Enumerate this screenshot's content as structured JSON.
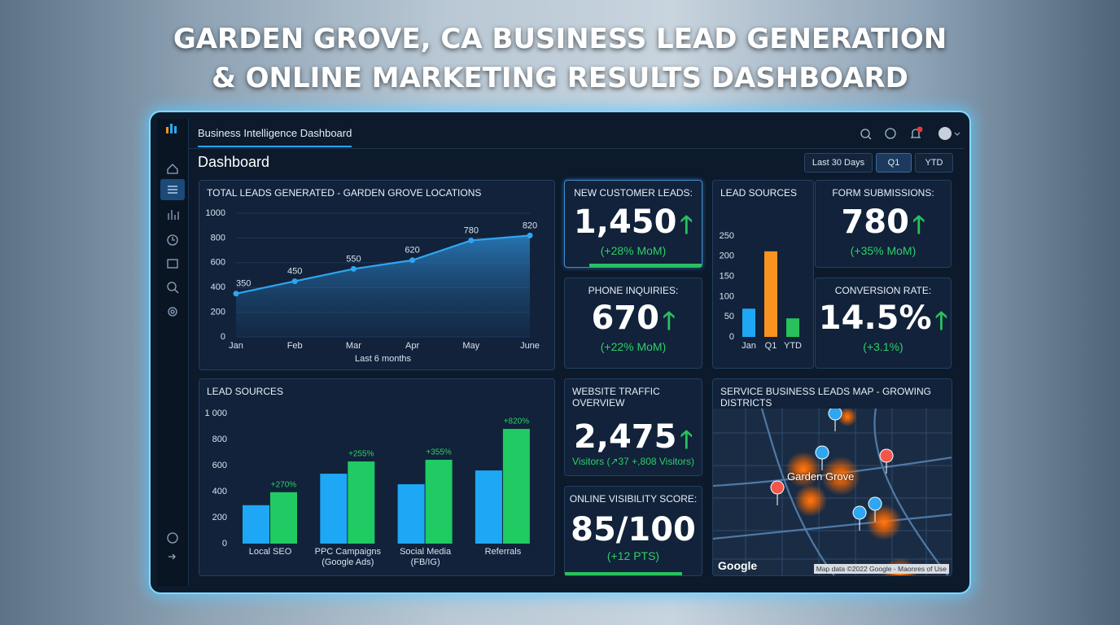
{
  "headline": [
    "GARDEN GROVE, CA BUSINESS LEAD GENERATION",
    "& ONLINE MARKETING RESULTS DASHBOARD"
  ],
  "app": {
    "tab": "Business Intelligence Dashboard",
    "heading": "Dashboard",
    "filters": [
      "Last 30 Days",
      "Q1",
      "YTD"
    ]
  },
  "kpis": [
    {
      "title": "NEW CUSTOMER LEADS:",
      "value": "1,450",
      "change": "(+28% MoM)"
    },
    {
      "title": "PHONE INQUIRIES:",
      "value": "670",
      "change": "(+22% MoM)"
    },
    {
      "title": "FORM SUBMISSIONS:",
      "value": "780",
      "change": "(+35% MoM)"
    },
    {
      "title": "CONVERSION RATE:",
      "value": "14.5%",
      "change": "(+3.1%)"
    },
    {
      "title": "WEBSITE TRAFFIC OVERVIEW",
      "value": "2,475",
      "change": "Visitors (↗37 +,808 Visitors)"
    },
    {
      "title": "ONLINE VISIBILITY SCORE:",
      "value": "85/100",
      "change": "(+12 PTS)"
    }
  ],
  "chart_data": [
    {
      "type": "line",
      "title": "TOTAL LEADS GENERATED - GARDEN GROVE LOCATIONS",
      "categories": [
        "Jan",
        "Feb",
        "Mar",
        "Apr",
        "May",
        "June"
      ],
      "values": [
        350,
        450,
        550,
        620,
        780,
        820
      ],
      "xlabel": "Last 6 months",
      "ylim": [
        0,
        1000
      ],
      "yticks": [
        0,
        200,
        400,
        600,
        800,
        1000
      ],
      "color": "#2ea6f2"
    },
    {
      "type": "bar",
      "title": "LEAD SOURCES",
      "categories": [
        "Jan",
        "Q1",
        "YTD"
      ],
      "values": [
        70,
        212,
        46
      ],
      "colors": [
        "#1ea7f5",
        "#f7931e",
        "#27c25c"
      ],
      "ylim": [
        0,
        250
      ],
      "yticks": [
        0,
        50,
        100,
        150,
        200,
        250
      ]
    },
    {
      "type": "grouped-bar",
      "title": "LEAD SOURCES",
      "categories": [
        "Local SEO",
        "PPC Campaigns (Google Ads)",
        "Social Media (FB/IG)",
        "Referrals"
      ],
      "series": [
        {
          "color": "#1ea7f5",
          "values": [
            295,
            537,
            456,
            562
          ]
        },
        {
          "color": "#1fcb62",
          "values": [
            395,
            631,
            644,
            881
          ]
        }
      ],
      "annotations": [
        "+270%",
        "+255%",
        "+355%",
        "+820%"
      ],
      "ylim": [
        0,
        1000
      ],
      "yticks": [
        0,
        200,
        400,
        600,
        800,
        {
          "value": 1000,
          "label": "1 000"
        }
      ]
    }
  ],
  "map": {
    "title": "SERVICE BUSINESS LEADS MAP - GROWING DISTRICTS",
    "place": "Garden Grove",
    "provider": "Google",
    "attribution": "Map data ©2022 Google - Maonres of Use"
  }
}
